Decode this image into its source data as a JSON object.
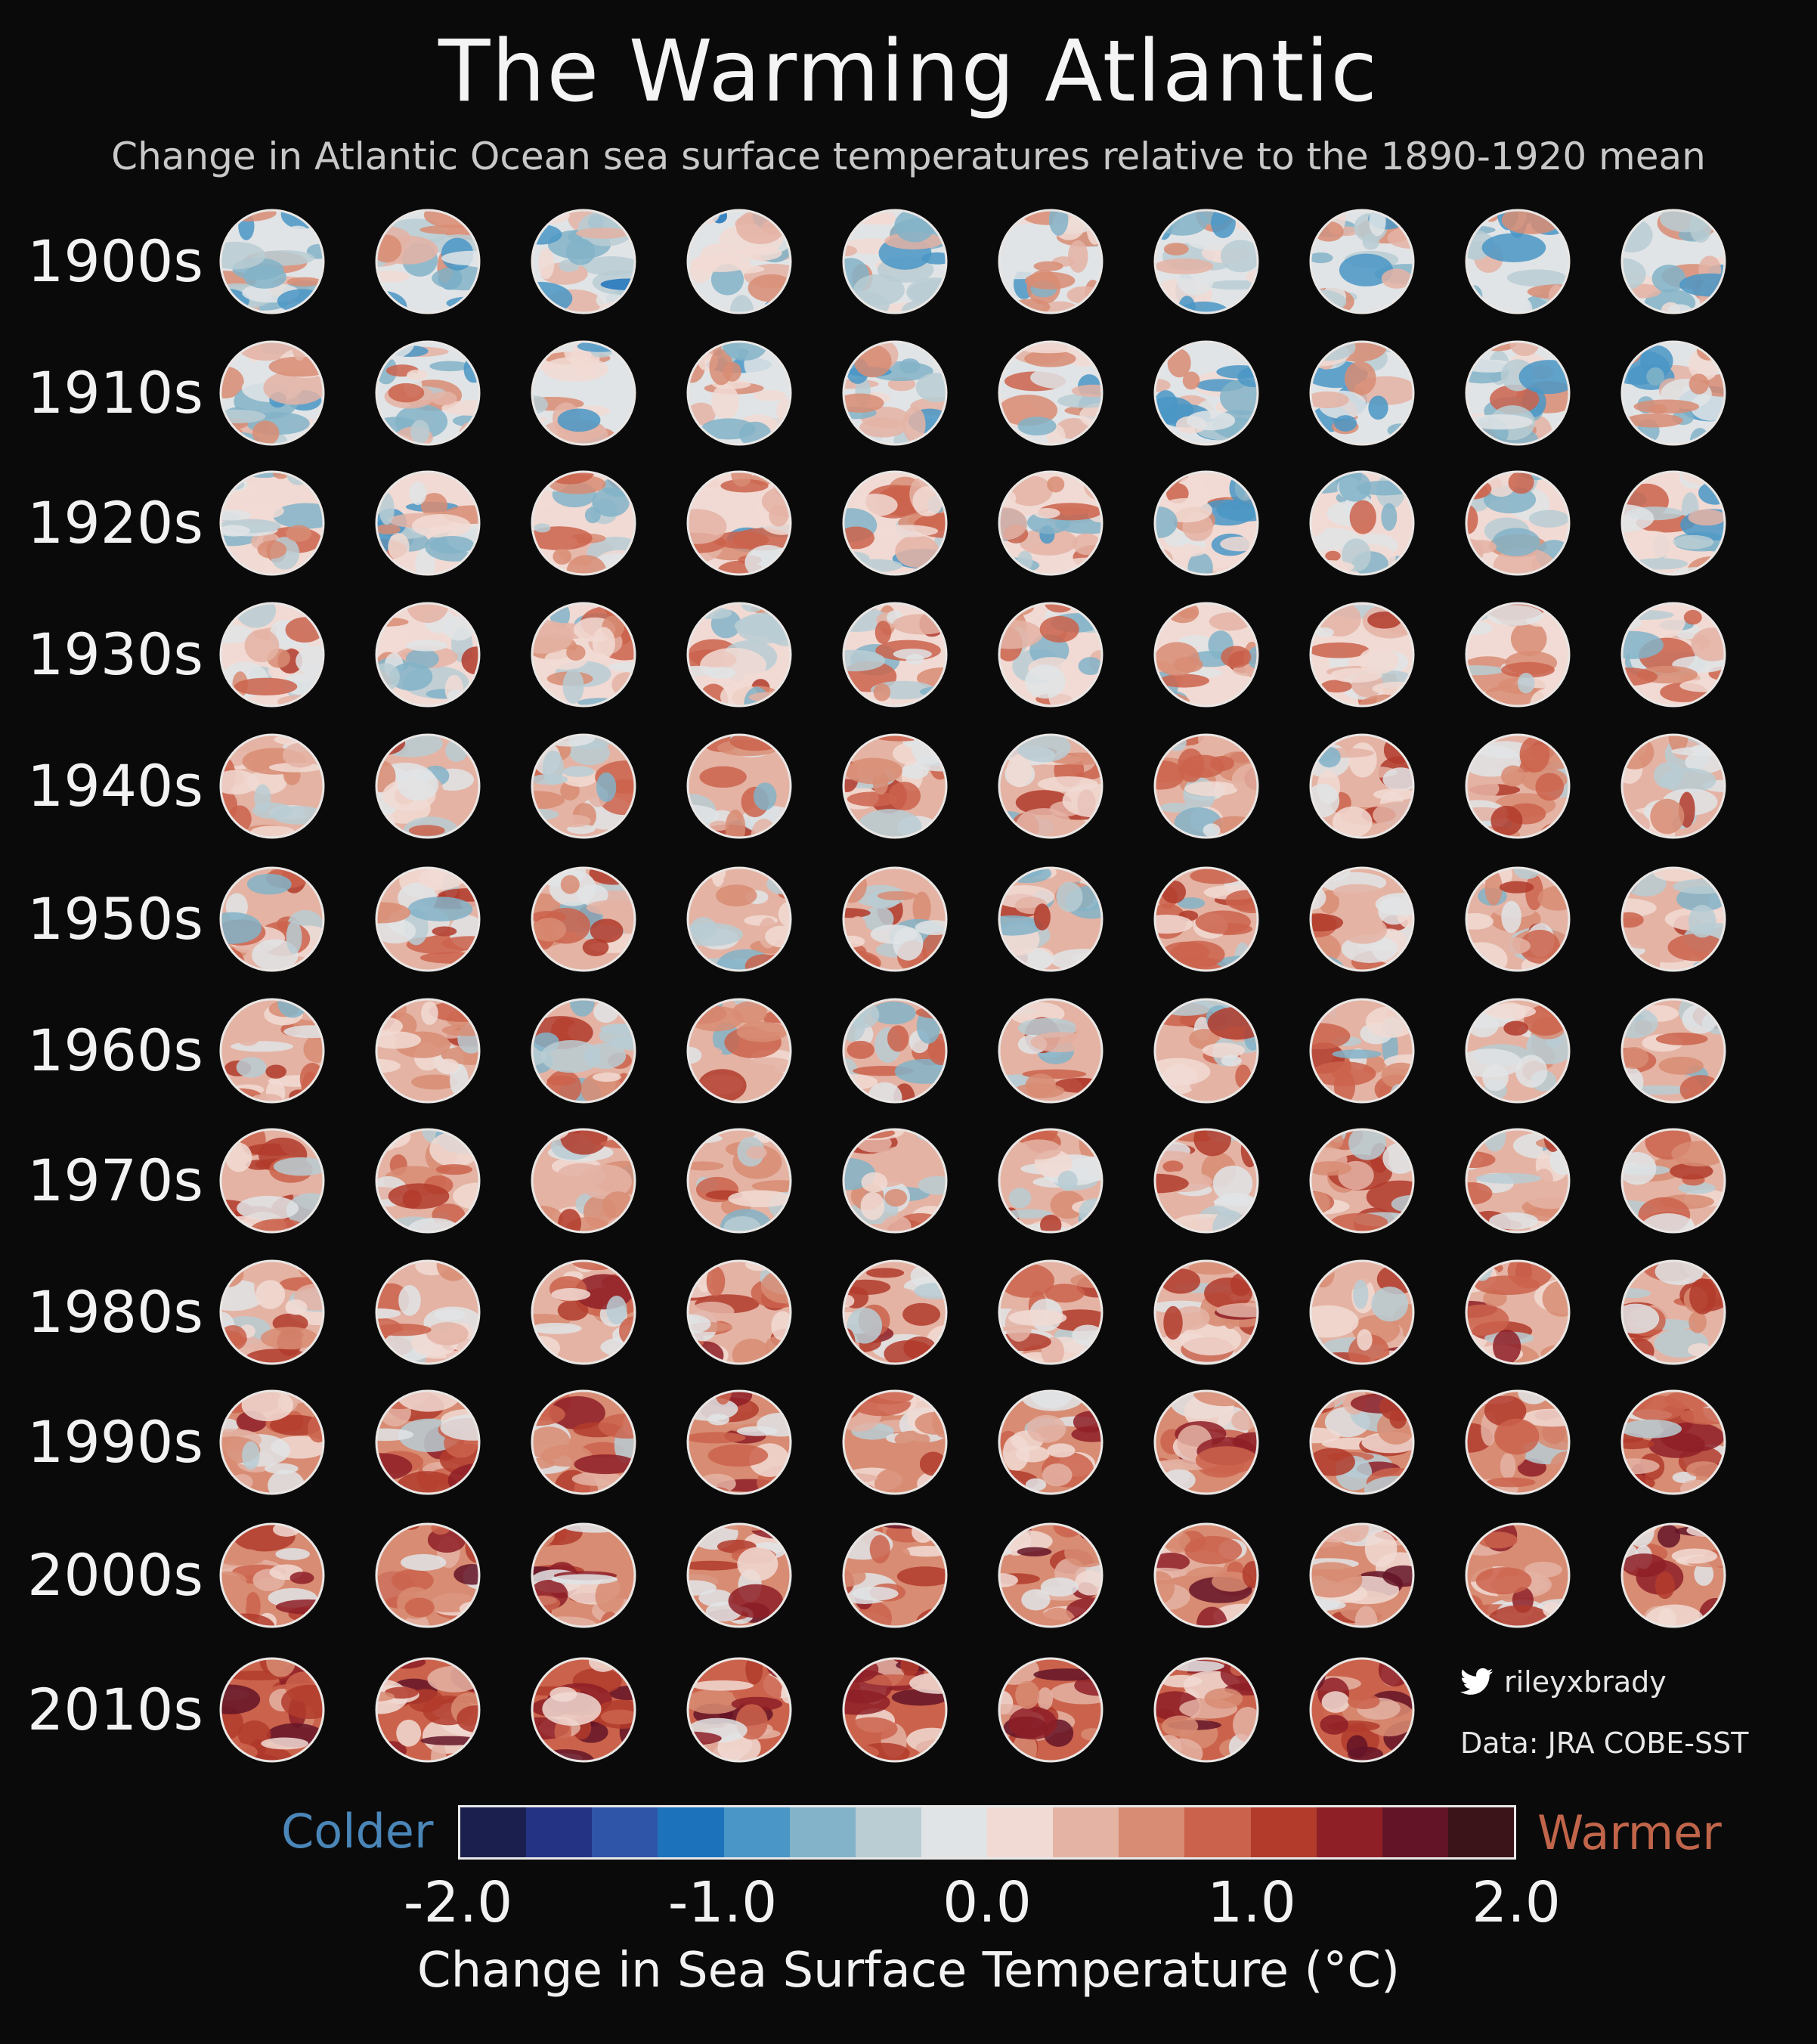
{
  "header": {
    "title": "The Warming Atlantic",
    "subtitle": "Change in Atlantic Ocean sea surface temperatures relative to the 1890-1920 mean"
  },
  "chart_data": {
    "type": "heatmap",
    "decades": [
      "1900s",
      "1910s",
      "1920s",
      "1930s",
      "1940s",
      "1950s",
      "1960s",
      "1970s",
      "1980s",
      "1990s",
      "2000s",
      "2010s"
    ],
    "years_per_decade": [
      10,
      10,
      10,
      10,
      10,
      10,
      10,
      10,
      10,
      10,
      10,
      8
    ],
    "approx_mean_anomaly_by_decade": [
      -0.15,
      -0.1,
      0.05,
      0.2,
      0.3,
      0.25,
      0.25,
      0.3,
      0.45,
      0.55,
      0.65,
      0.85
    ],
    "colorbar": {
      "label": "Change in Sea Surface Temperature (°C)",
      "min": -2.0,
      "max": 2.0,
      "ticks": [
        "-2.0",
        "-1.0",
        "0.0",
        "1.0",
        "2.0"
      ],
      "tick_values": [
        -2.0,
        -1.0,
        0.0,
        1.0,
        2.0
      ],
      "low_label": "Colder",
      "high_label": "Warmer",
      "colors": [
        "#1b1f4e",
        "#243383",
        "#2f55a8",
        "#1d73bb",
        "#4a96c6",
        "#82b3c8",
        "#b9cdd3",
        "#e1e4e6",
        "#f1dad4",
        "#e4b3a4",
        "#d88c73",
        "#cb634c",
        "#b23b2c",
        "#8e1f27",
        "#641427",
        "#3a1419"
      ]
    }
  },
  "credits": {
    "twitter_icon": "twitter-bird-icon",
    "handle": "rileyxbrady",
    "data_source": "Data: JRA COBE-SST"
  }
}
